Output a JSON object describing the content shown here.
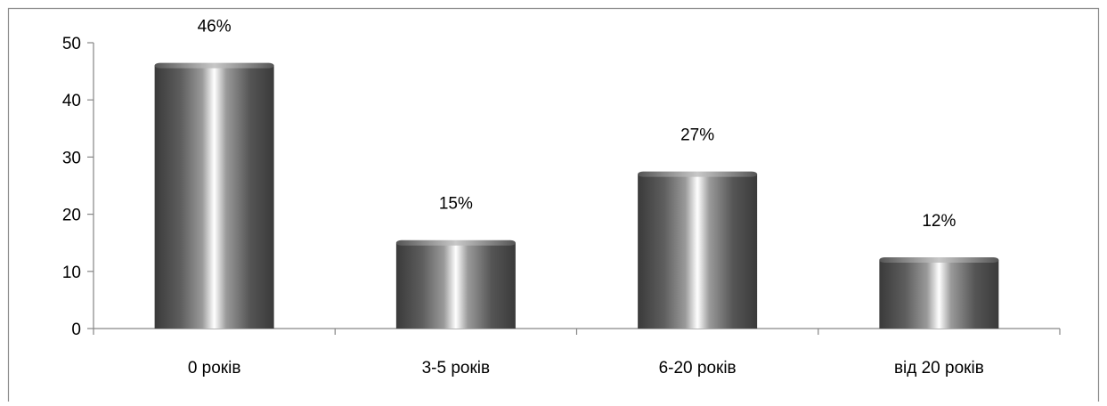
{
  "chart_data": {
    "type": "bar",
    "categories": [
      "0 років",
      "3-5 років",
      "6-20 років",
      "від 20 років"
    ],
    "values": [
      46,
      15,
      27,
      12
    ],
    "data_labels": [
      "46%",
      "15%",
      "27%",
      "12%"
    ],
    "ylim": [
      0,
      50
    ],
    "yticks": [
      0,
      10,
      20,
      30,
      40,
      50
    ],
    "grid": false,
    "legend": "none",
    "bar_style": "3d-cylinder"
  },
  "colors": {
    "bar_dark": "#3a3a3a",
    "bar_mid": "#6e6e6e",
    "bar_light": "#ffffff",
    "axis": "#868686",
    "frame": "#8c8c8c"
  }
}
